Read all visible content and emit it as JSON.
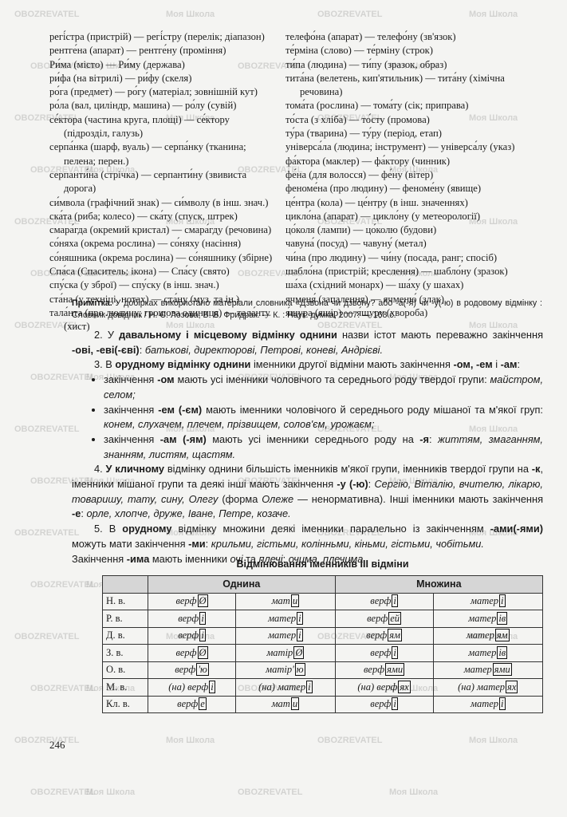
{
  "word_list": {
    "left": [
      "регі́стра (пристрій) — регі́стру (перелік; діапазон)",
      "рентге́на (апарат) — рентге́ну (проміння)",
      "Ри́ма (місто) — Ри́му (держава)",
      "ри́фа (на вітрилі) — ри́фу (скеля)",
      "ро́га (предмет) — ро́гу (матеріал; зовнішній кут)",
      "ро́ла (вал, циліндр, машина) — ро́лу (сувій)",
      "се́ктора (частина круга, площі) — се́ктору (підрозділ, галузь)",
      "серпа́нка (шарф, вуаль) — серпа́нку (тканина; пелена; перен.)",
      "серпанти́на (стрічка) — серпанти́ну (звивиста дорога)",
      "си́мвола (графічний знак) — си́мволу (в інш. знач.)",
      "ска́та (риба; колесо) — ска́ту (спуск, штрек)",
      "смара́гда (окремий кристал) — смара́гду (речовина)",
      "со́няха (окрема рослина) — со́няху (насіння)",
      "со́няшника (окрема рослина) — со́няшнику (збірне)",
      "Спа́са (Спаситель; ікона) — Спа́су (свято)",
      "спу́ска (у зброї) — спу́ску (в інш. знач.)",
      "ста́на (у техніці, нотах) — ста́ну (муз. та ін.)",
      "тала́нта (про людину; грошова одиниця) — тала́нту (хист)"
    ],
    "right": [
      "телефо́на (апарат) — телефо́ну (зв'язок)",
      "те́рміна (слово) — те́рміну (строк)",
      "ти́па (людина) — ти́пу (зразок, образ)",
      "тита́на (велетень, кип'ятильник) — тита́ну (хімічна речовина)",
      "тома́та (рослина) — тома́ту (сік; приправа)",
      "то́ста (з хліба) — то́сту (промова)",
      "ту́ра (тварина) — ту́ру (період, етап)",
      "універса́ла (людина; інструмент) — універса́лу (указ)",
      "фа́ктора (маклер) — фа́ктору (чинник)",
      "фе́на (для волосся) — фе́ну (вітер)",
      "феноме́на (про людину) — феноме́ну (явище)",
      "це́нтра (кола) — це́нтру (в інш. значеннях)",
      "цикло́на (апарат) — цикло́ну (у метеорології)",
      "цо́коля (лампи) — цо́колю (будови)",
      "чавуна́ (посуд) — чавуну́ (метал)",
      "чи́на (про людину) — чи́ну (посада, ранг; спосіб)",
      "шабло́на (пристрій; креслення) — шабло́ну (зразок)",
      "ша́ха (східний монарх) — ша́ху (у шахах)",
      "ячменя́ (запалення) — ячменю́ (злак)",
      "я́щура (ящір) — я́щуру (хвороба)"
    ]
  },
  "note": {
    "label": "Примітка.",
    "text": "У добірках використано матеріали словника «Дзвона чи дзвону? або -а(-я) чи -у(-ю) в родовому відмінку : Словник-довідник / Н. Є. Лозова, В. Б. Фридрак. — К. : Наук. думка, 2007. — 168 с."
  },
  "paragraphs": [
    {
      "parts": [
        "2. У ",
        "давальному і місцевому відмінку однини",
        " назви істот мають переважно закінчення ",
        "-ові, -еві(-єві)",
        ": ",
        "батькові, директорові, Петрові, коневі, Андрієві."
      ]
    },
    {
      "parts": [
        "3. В ",
        "орудному відмінку однини",
        " іменники другої відміни мають закінчення ",
        "-ом, -ем",
        " і ",
        "-ам",
        ":"
      ]
    },
    {
      "parts": [
        "4. ",
        "У кличному",
        " відмінку однини більшість іменників м'якої групи, іменників твердої групи на ",
        "-к",
        ", іменники мішаної групи та деякі інші мають закінчення ",
        "-у (-ю)",
        ": ",
        "Сергію, Віталію, вчителю, лікарю, товаришу, тату, сину, Олегу",
        " (форма ",
        "Олеже",
        " — ненормативна). Інші іменники мають закінчення ",
        "-е",
        ": ",
        "орле, хлопче, друже, Іване, Петре, козаче."
      ]
    },
    {
      "parts": [
        "5. В ",
        "орудному",
        " відмінку множини деякі іменники паралельно із закінченням ",
        "-ами(-ями)",
        " можуть мати закінчення ",
        "-ми",
        ": ",
        "крильми, гістьми, колінньми, кіньми, гістьми, чобітьми."
      ]
    },
    {
      "parts": [
        "Закінчення ",
        "-има",
        " мають іменники ",
        "очі",
        " та ",
        "плечі",
        ": ",
        "очима, плечима."
      ]
    }
  ],
  "bullets": [
    {
      "parts": [
        "закінчення ",
        "-ом",
        " мають усі іменники чоловічого та середнього роду твердої групи: ",
        "майстром, селом;"
      ]
    },
    {
      "parts": [
        "закінчення ",
        "-ем (-єм)",
        " мають іменники чоловічого й середнього роду мішаної та м'якої груп: ",
        "конем, слухачем, плечем, прізвищем, солов'єм, урожаєм;"
      ]
    },
    {
      "parts": [
        "закінчення ",
        "-ам (-ям)",
        " мають усі іменники середнього роду на ",
        "-я",
        ": ",
        "життям, змаганням, знанням, листям, щастям."
      ]
    }
  ],
  "table": {
    "title": "Відмінювання іменників III відміни",
    "header": [
      "Однина",
      "Множина"
    ],
    "rows": [
      {
        "case": "Н. в.",
        "cells": [
          [
            "верф",
            "Ø"
          ],
          [
            "мат",
            "и"
          ],
          [
            "верф",
            "і"
          ],
          [
            "матер",
            "і"
          ]
        ]
      },
      {
        "case": "Р. в.",
        "cells": [
          [
            "верф",
            "і"
          ],
          [
            "матер",
            "і"
          ],
          [
            "верф",
            "ей"
          ],
          [
            "матер",
            "ів"
          ]
        ]
      },
      {
        "case": "Д. в.",
        "cells": [
          [
            "верф",
            "і"
          ],
          [
            "матер",
            "і"
          ],
          [
            "верф",
            "ям"
          ],
          [
            "матер",
            "ям"
          ]
        ]
      },
      {
        "case": "З. в.",
        "cells": [
          [
            "верф",
            "Ø"
          ],
          [
            "матір",
            "Ø"
          ],
          [
            "верф",
            "і"
          ],
          [
            "матер",
            "ів"
          ]
        ]
      },
      {
        "case": "О. в.",
        "cells": [
          [
            "верф",
            "'ю"
          ],
          [
            "матір'",
            "ю"
          ],
          [
            "верф",
            "ями"
          ],
          [
            "матер",
            "ями"
          ]
        ]
      },
      {
        "case": "М. в.",
        "cells": [
          [
            "(на) верф",
            "і"
          ],
          [
            "(на) матер",
            "і"
          ],
          [
            "(на) верф",
            "ях"
          ],
          [
            "(на) матер",
            "ях"
          ]
        ]
      },
      {
        "case": "Кл. в.",
        "cells": [
          [
            "верф",
            "е"
          ],
          [
            "мат",
            "и"
          ],
          [
            "верф",
            "і"
          ],
          [
            "матер",
            "і"
          ]
        ]
      }
    ]
  },
  "page_number": "246",
  "watermarks": [
    "OBOZREVATEL",
    "Моя Школа"
  ]
}
